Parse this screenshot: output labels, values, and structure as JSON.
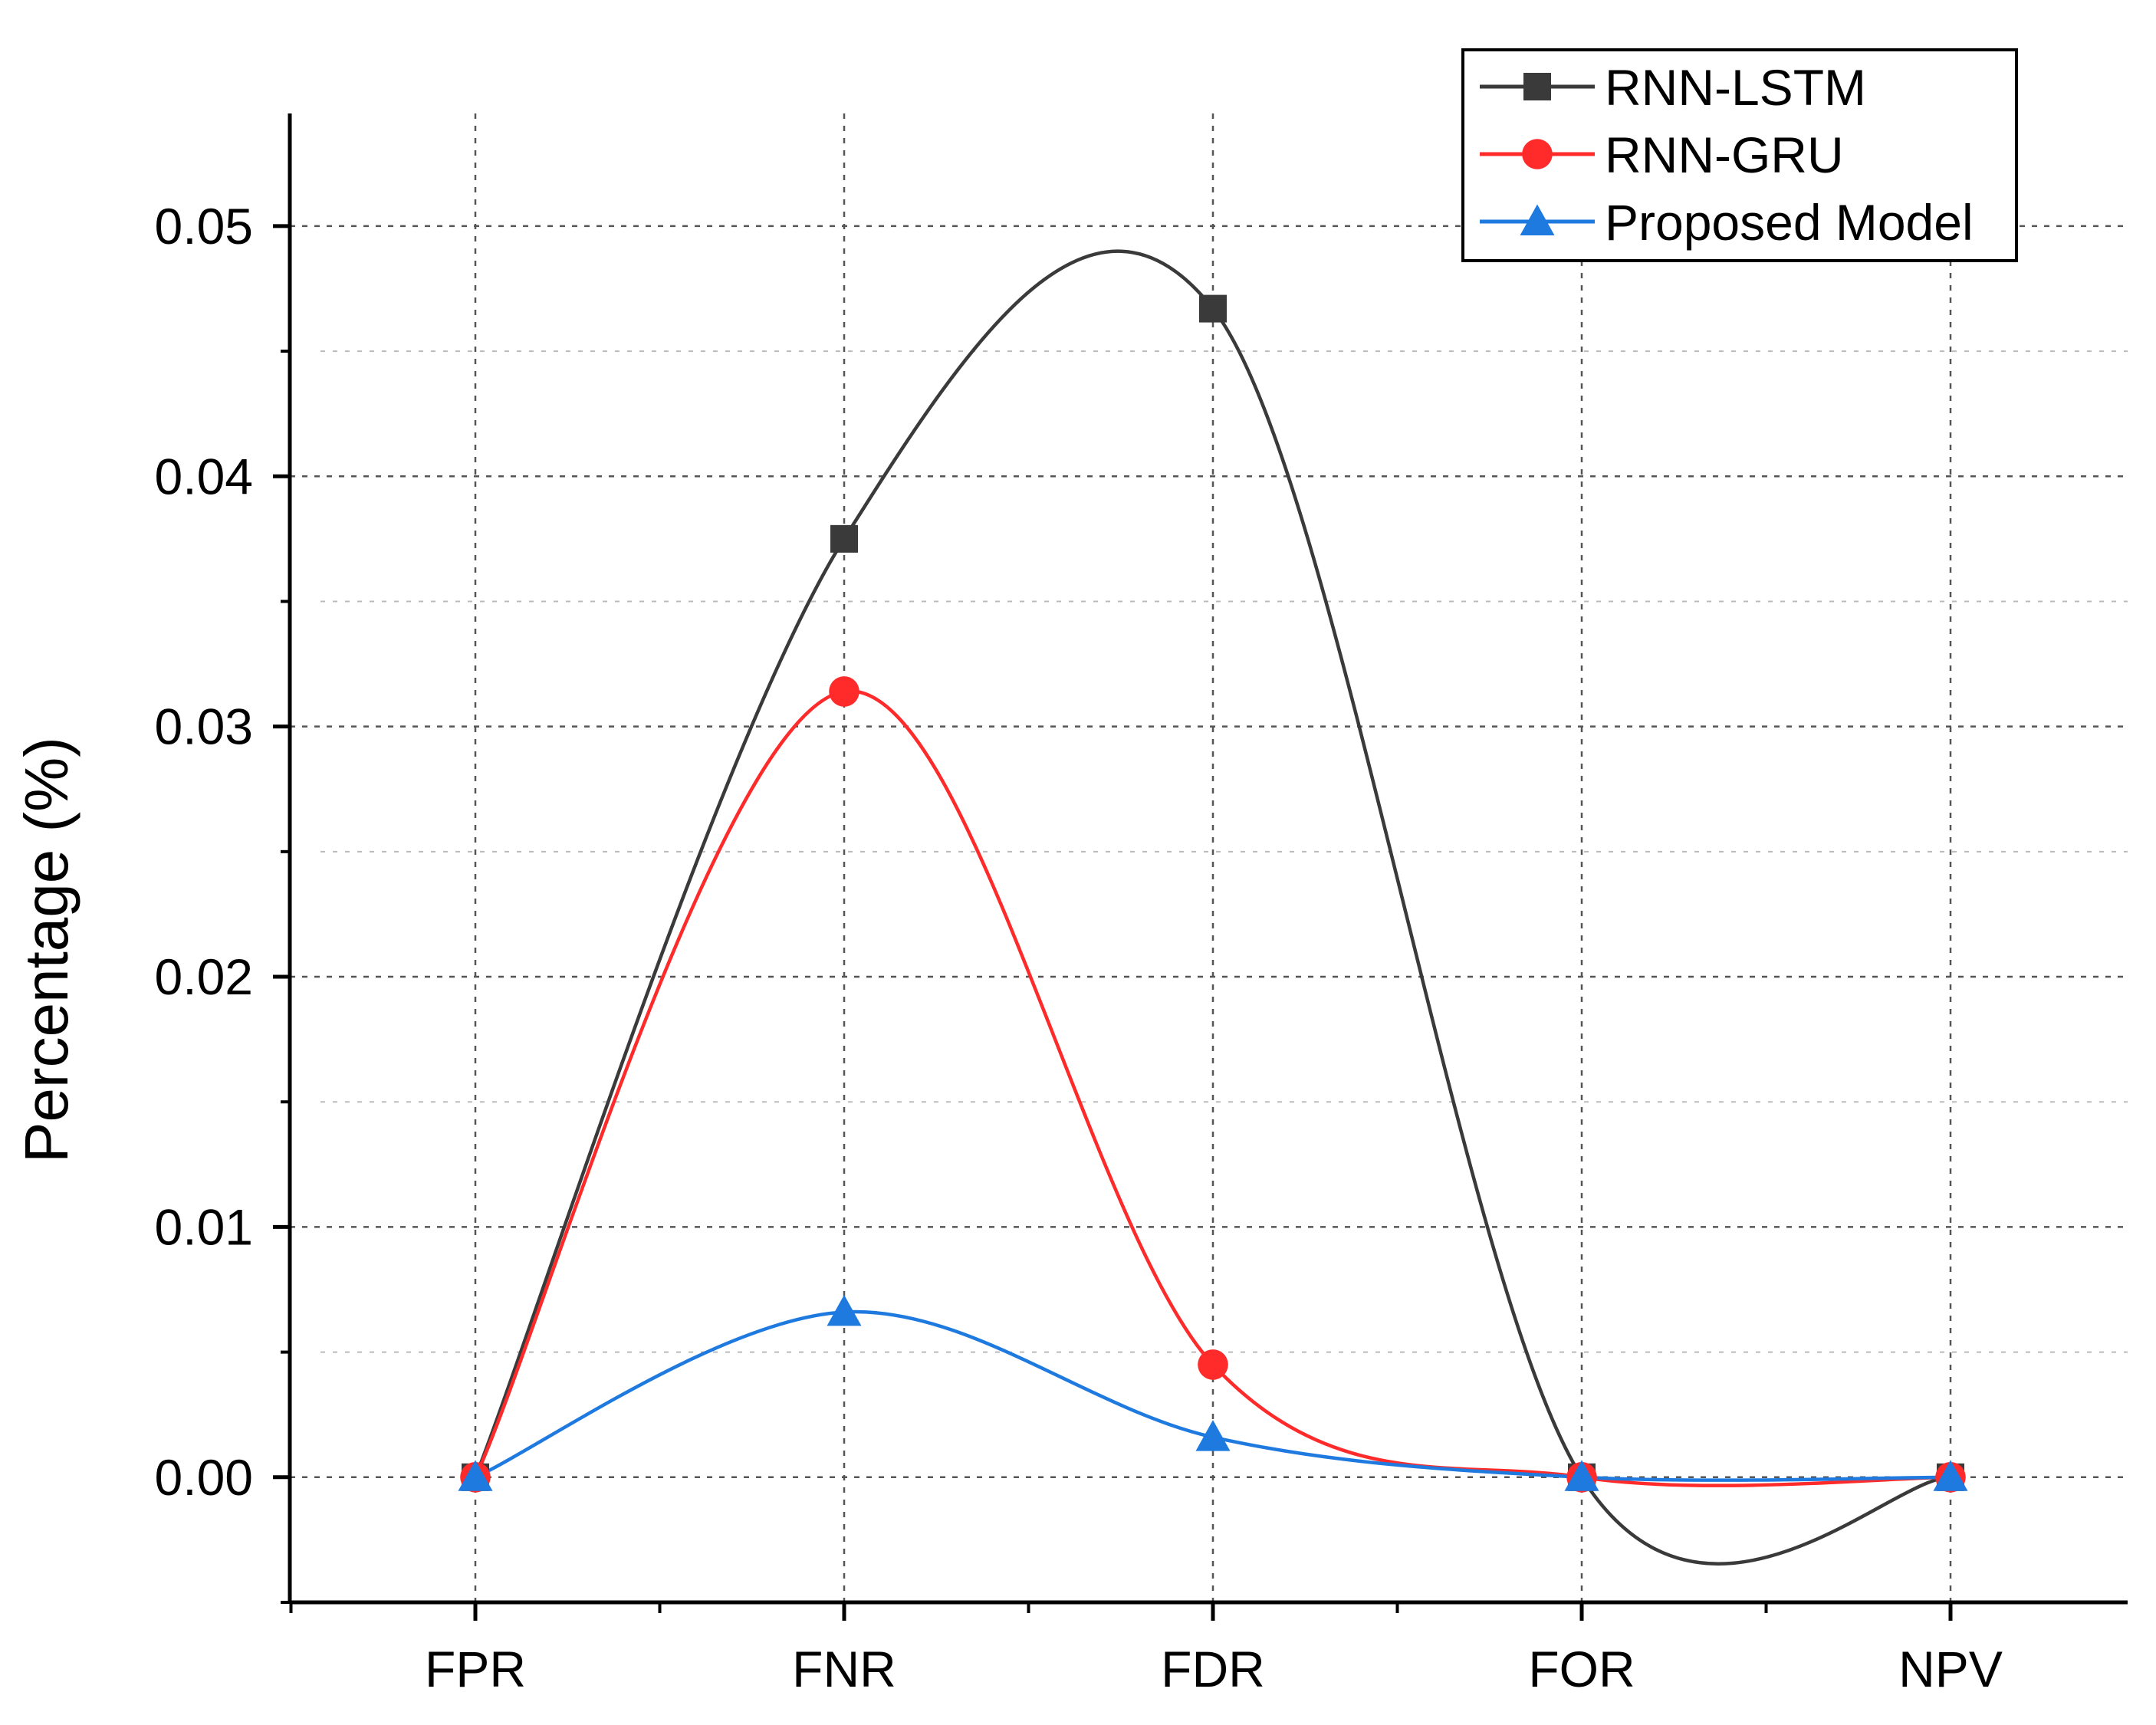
{
  "chart_data": {
    "type": "line",
    "categories": [
      "FPR",
      "FNR",
      "FDR",
      "FOR",
      "NPV"
    ],
    "series": [
      {
        "name": "RNN-LSTM",
        "color": "#3a3a3a",
        "marker": "square",
        "values": [
          0.0,
          0.0375,
          0.0467,
          0.0,
          0.0
        ]
      },
      {
        "name": "RNN-GRU",
        "color": "#ff2a2a",
        "marker": "circle",
        "values": [
          0.0,
          0.0314,
          0.0045,
          0.0,
          0.0
        ]
      },
      {
        "name": "Proposed Model",
        "color": "#1f7ae0",
        "marker": "triangle",
        "values": [
          0.0,
          0.0066,
          0.0016,
          0.0,
          0.0
        ]
      }
    ],
    "title": "",
    "xlabel": "",
    "ylabel": "Percentage (%)",
    "ylim": [
      -0.005,
      0.0545
    ],
    "yticks": [
      0.0,
      0.01,
      0.02,
      0.03,
      0.04,
      0.05
    ],
    "ytick_labels": [
      "0.00",
      "0.01",
      "0.02",
      "0.03",
      "0.04",
      "0.05"
    ],
    "grid": true,
    "legend_position": "top-right",
    "curve": "smooth"
  }
}
